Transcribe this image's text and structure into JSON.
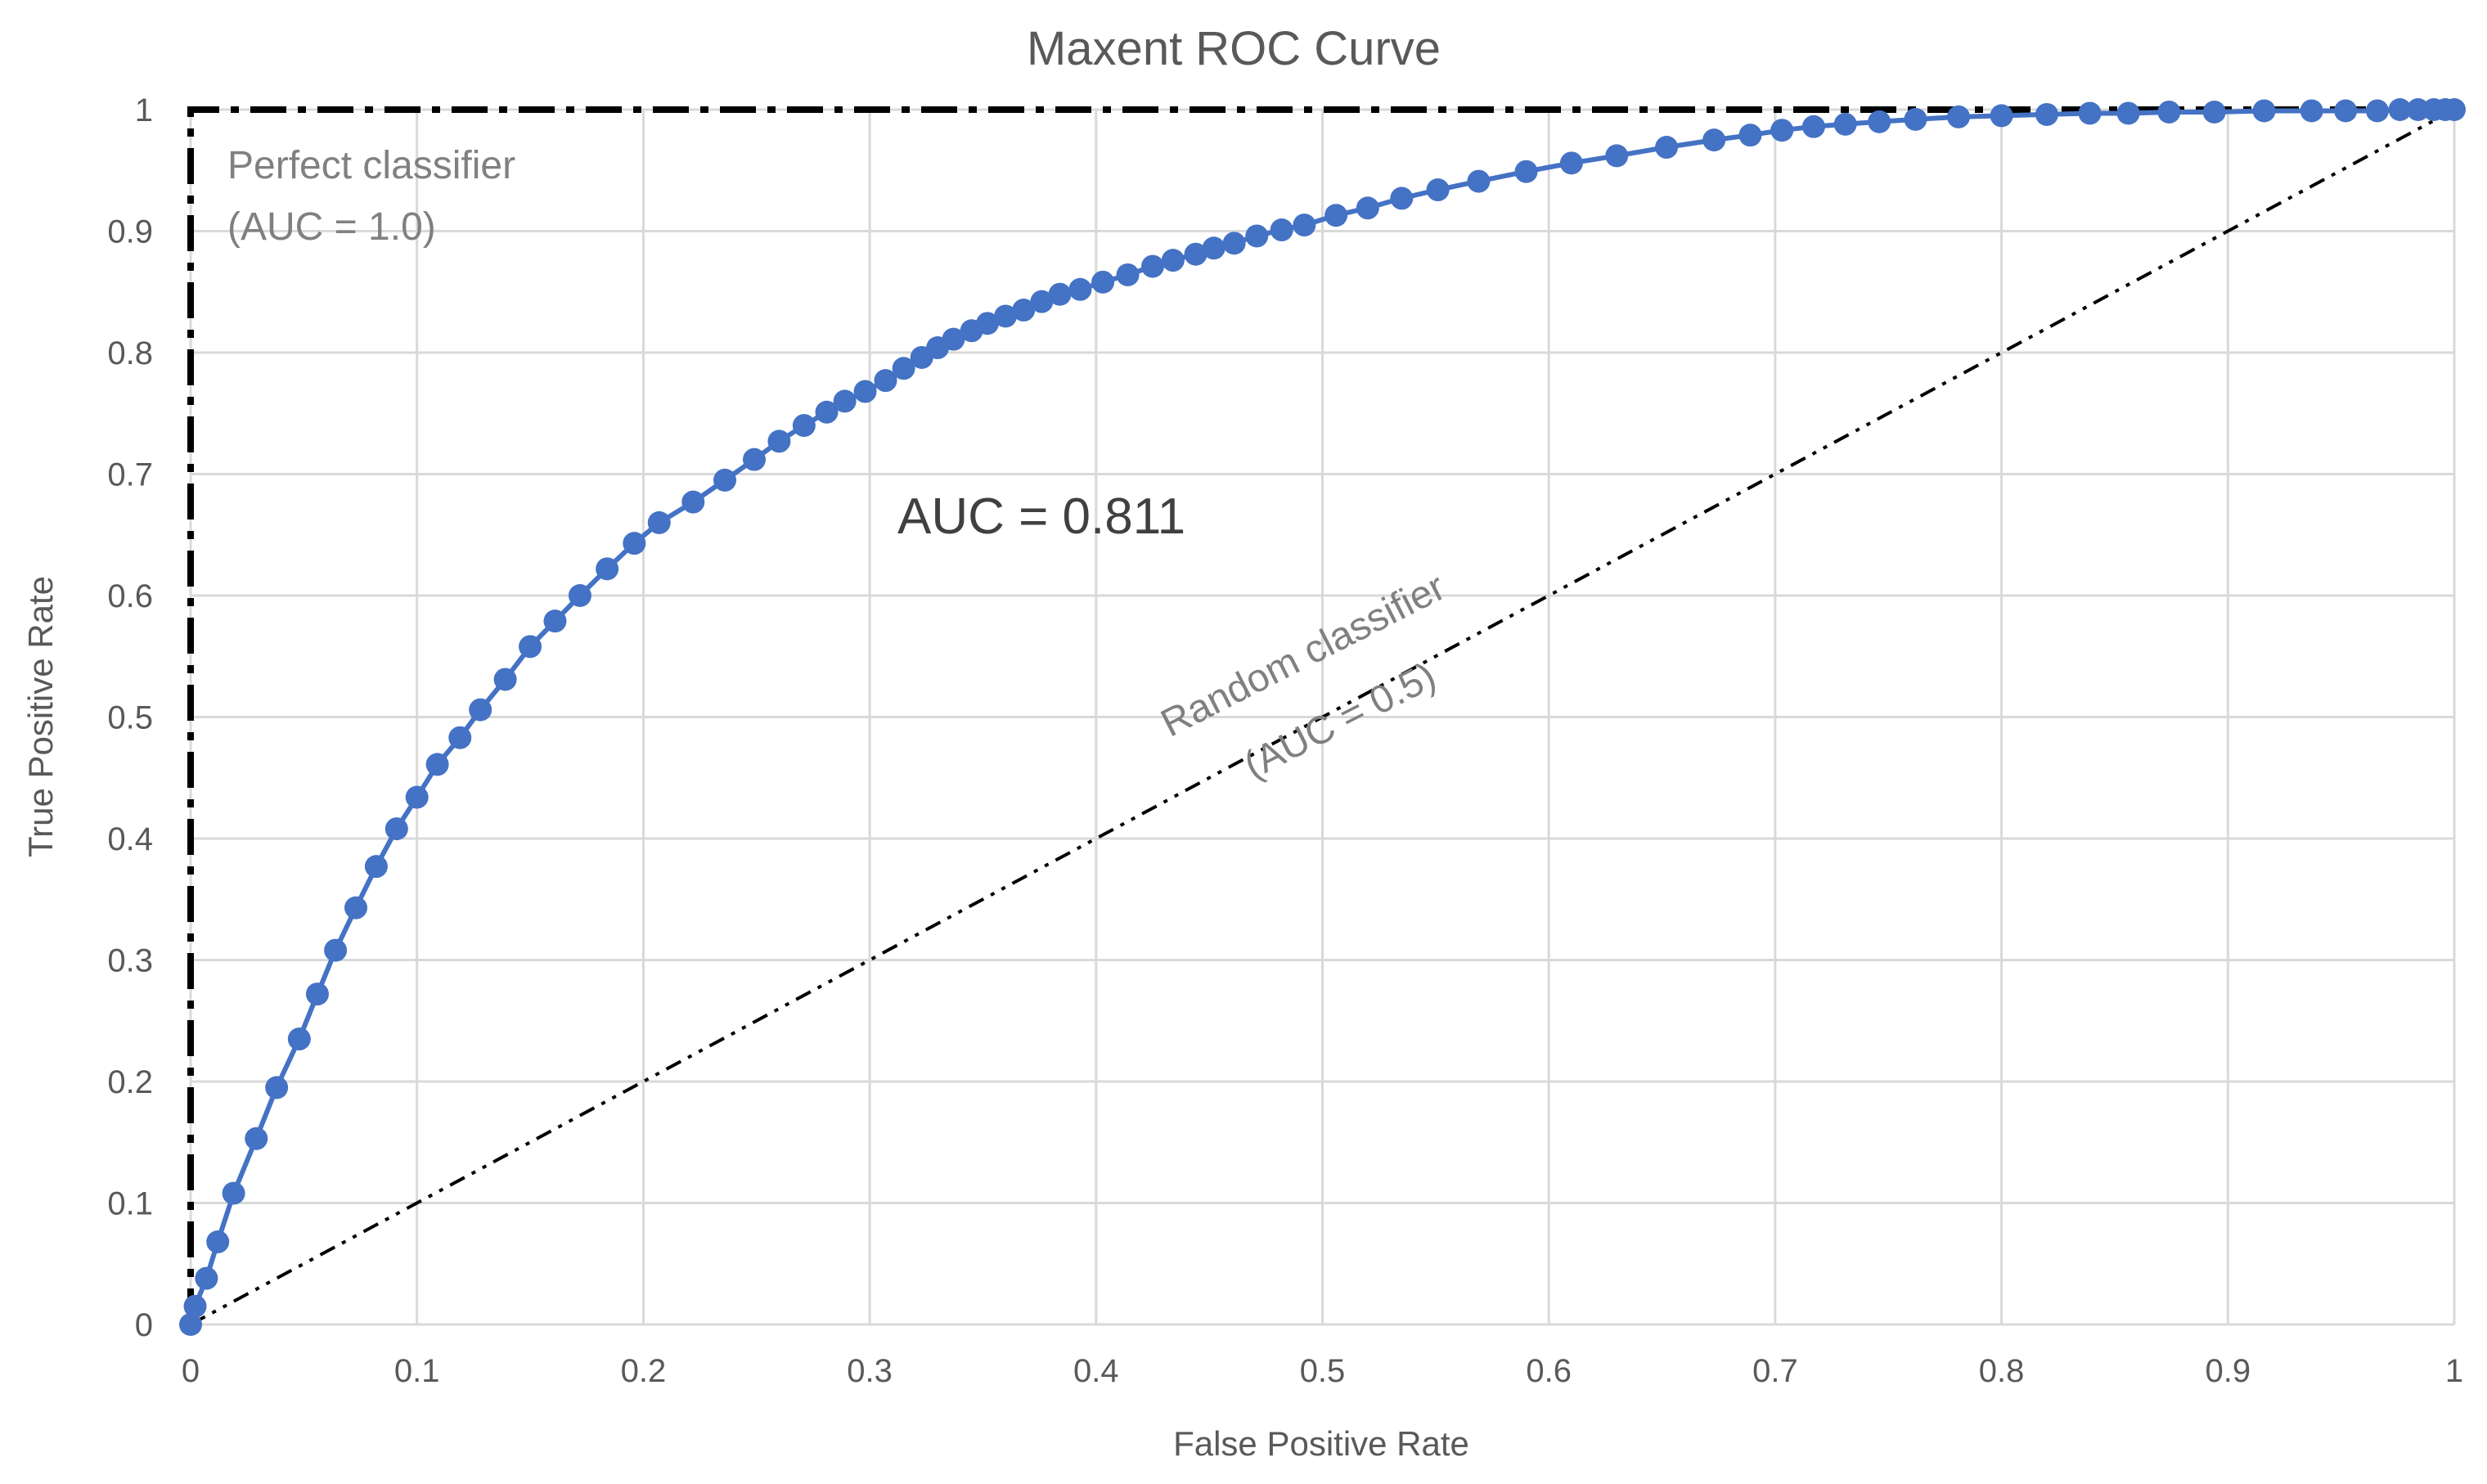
{
  "chart_data": {
    "type": "line",
    "title": "Maxent ROC Curve",
    "xlabel": "False Positive Rate",
    "ylabel": "True Positive Rate",
    "xlim": [
      0,
      1
    ],
    "ylim": [
      0,
      1
    ],
    "grid": true,
    "x_ticks": [
      "0",
      "0.1",
      "0.2",
      "0.3",
      "0.4",
      "0.5",
      "0.6",
      "0.7",
      "0.8",
      "0.9",
      "1"
    ],
    "y_ticks": [
      "0",
      "0.1",
      "0.2",
      "0.3",
      "0.4",
      "0.5",
      "0.6",
      "0.7",
      "0.8",
      "0.9",
      "1"
    ],
    "series": [
      {
        "name": "Maxent ROC",
        "color": "#4472c4",
        "style": "solid-markers",
        "x": [
          0,
          0.002,
          0.007,
          0.012,
          0.019,
          0.029,
          0.038,
          0.048,
          0.056,
          0.064,
          0.073,
          0.082,
          0.091,
          0.1,
          0.109,
          0.119,
          0.128,
          0.139,
          0.15,
          0.161,
          0.172,
          0.184,
          0.196,
          0.207,
          0.222,
          0.236,
          0.249,
          0.26,
          0.271,
          0.281,
          0.289,
          0.298,
          0.307,
          0.315,
          0.323,
          0.33,
          0.337,
          0.345,
          0.352,
          0.36,
          0.368,
          0.376,
          0.384,
          0.393,
          0.403,
          0.414,
          0.425,
          0.434,
          0.444,
          0.452,
          0.461,
          0.471,
          0.482,
          0.492,
          0.506,
          0.52,
          0.535,
          0.551,
          0.569,
          0.59,
          0.61,
          0.63,
          0.652,
          0.673,
          0.689,
          0.703,
          0.717,
          0.731,
          0.746,
          0.762,
          0.781,
          0.8,
          0.82,
          0.839,
          0.856,
          0.874,
          0.894,
          0.916,
          0.937,
          0.952,
          0.966,
          0.976,
          0.984,
          0.991,
          0.996,
          1
        ],
        "y": [
          0,
          0.015,
          0.038,
          0.068,
          0.108,
          0.153,
          0.195,
          0.235,
          0.272,
          0.308,
          0.343,
          0.377,
          0.408,
          0.434,
          0.461,
          0.483,
          0.506,
          0.531,
          0.558,
          0.579,
          0.6,
          0.622,
          0.643,
          0.66,
          0.677,
          0.695,
          0.712,
          0.727,
          0.74,
          0.751,
          0.76,
          0.768,
          0.777,
          0.787,
          0.796,
          0.804,
          0.811,
          0.818,
          0.824,
          0.83,
          0.835,
          0.842,
          0.848,
          0.852,
          0.858,
          0.864,
          0.871,
          0.876,
          0.881,
          0.886,
          0.89,
          0.896,
          0.901,
          0.905,
          0.913,
          0.919,
          0.927,
          0.934,
          0.941,
          0.949,
          0.956,
          0.962,
          0.969,
          0.975,
          0.979,
          0.983,
          0.986,
          0.988,
          0.99,
          0.992,
          0.994,
          0.995,
          0.996,
          0.997,
          0.997,
          0.998,
          0.998,
          0.999,
          0.999,
          0.999,
          0.999,
          1,
          1,
          1,
          1,
          1
        ]
      },
      {
        "name": "Random classifier",
        "color": "#000000",
        "style": "dash-dot-dot",
        "x": [
          0,
          1
        ],
        "y": [
          0,
          1
        ]
      },
      {
        "name": "Perfect classifier",
        "color": "#000000",
        "style": "dash-dot",
        "x": [
          0,
          0,
          1
        ],
        "y": [
          0,
          1,
          1
        ]
      }
    ],
    "annotations": {
      "perfect_line1": "Perfect classifier",
      "perfect_line2": "(AUC = 1.0)",
      "auc": "AUC = 0.811",
      "random_line1": "Random classifier",
      "random_line2": "(AUC = 0.5)"
    }
  }
}
